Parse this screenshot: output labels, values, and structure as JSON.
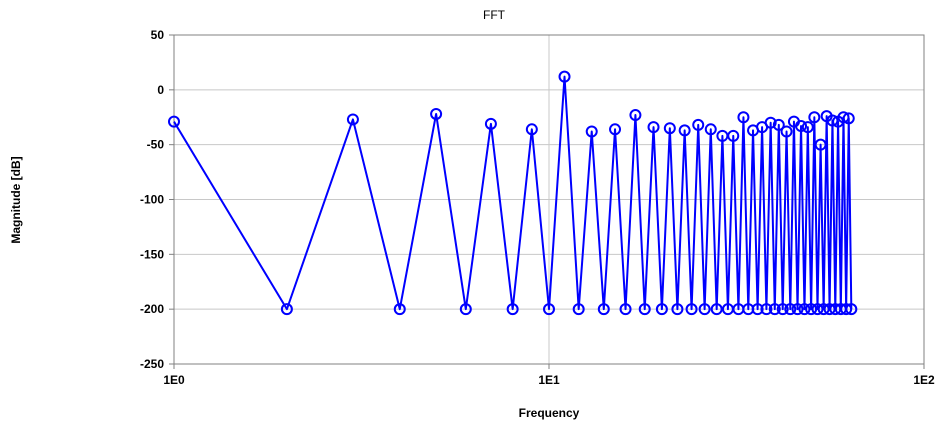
{
  "chart_data": {
    "type": "line",
    "title": "FFT",
    "xlabel": "Frequency",
    "ylabel": "Magnitude [dB]",
    "x_scale": "log",
    "xlim": [
      1,
      100
    ],
    "ylim": [
      -250,
      50
    ],
    "x_ticks": [
      1,
      10,
      100
    ],
    "x_tick_labels": [
      "1E0",
      "1E1",
      "1E2"
    ],
    "y_ticks": [
      50,
      0,
      -50,
      -100,
      -150,
      -200,
      -250
    ],
    "y_tick_labels": [
      "50",
      "0",
      "-50",
      "-100",
      "-150",
      "-200",
      "-250"
    ],
    "grid": true,
    "legend": "none",
    "series": [
      {
        "color": "#0000ff",
        "marker": "circle",
        "x": [
          1,
          2,
          3,
          4,
          5,
          6,
          7,
          8,
          9,
          10,
          11,
          12,
          13,
          14,
          15,
          16,
          17,
          18,
          19,
          20,
          21,
          22,
          23,
          24,
          25,
          26,
          27,
          28,
          29,
          30,
          31,
          32,
          33,
          34,
          35,
          36,
          37,
          38,
          39,
          40,
          41,
          42,
          43,
          44,
          45,
          46,
          47,
          48,
          49,
          50,
          51,
          52,
          53,
          54,
          55,
          56,
          57,
          58,
          59,
          60,
          61,
          62,
          63,
          64
        ],
        "y": [
          -29,
          -200,
          -27,
          -200,
          -22,
          -200,
          -31,
          -200,
          -36,
          -200,
          12,
          -200,
          -38,
          -200,
          -36,
          -200,
          -23,
          -200,
          -34,
          -200,
          -35,
          -200,
          -37,
          -200,
          -32,
          -200,
          -36,
          -200,
          -42,
          -200,
          -42,
          -200,
          -25,
          -200,
          -37,
          -200,
          -34,
          -200,
          -30,
          -200,
          -32,
          -200,
          -38,
          -200,
          -29,
          -200,
          -33,
          -200,
          -34,
          -200,
          -25,
          -200,
          -50,
          -200,
          -24,
          -200,
          -28,
          -200,
          -29,
          -200,
          -25,
          -200,
          -26,
          -200
        ]
      }
    ]
  }
}
